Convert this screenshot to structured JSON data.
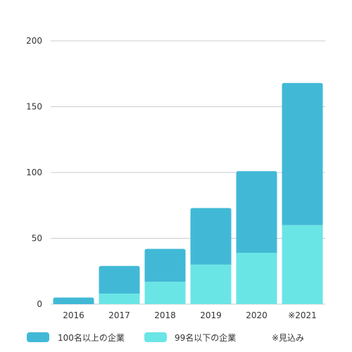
{
  "chart_data": {
    "type": "bar",
    "stacked": true,
    "categories": [
      "2016",
      "2017",
      "2018",
      "2019",
      "2020",
      "※2021"
    ],
    "series": [
      {
        "name": "99名以下の企業",
        "color": "#6AE5E5",
        "values": [
          0,
          8,
          17,
          30,
          39,
          60
        ]
      },
      {
        "name": "100名以上の企業",
        "color": "#41B9D6",
        "values": [
          5,
          21,
          25,
          43,
          62,
          108
        ]
      }
    ],
    "ylim": [
      0,
      200
    ],
    "yticks": [
      0,
      50,
      100,
      150,
      200
    ],
    "grid": true,
    "legend_position": "bottom",
    "legend_order": [
      "100名以上の企業",
      "99名以下の企業"
    ],
    "legend_note": "※見込み",
    "title": "",
    "xlabel": "",
    "ylabel": ""
  }
}
